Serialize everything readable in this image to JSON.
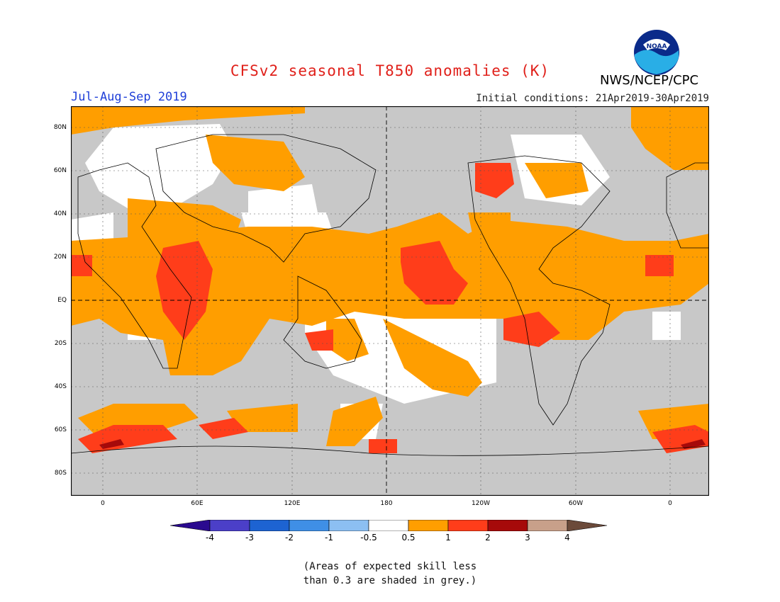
{
  "header": {
    "title": "CFSv2 seasonal T850 anomalies (K)",
    "season": "Jul-Aug-Sep 2019",
    "initial_conditions": "Initial conditions: 21Apr2019-30Apr2019",
    "agency": "NWS/NCEP/CPC",
    "logo_text": "NOAA"
  },
  "map": {
    "longitude_labels": [
      "0",
      "60E",
      "120E",
      "180",
      "120W",
      "60W",
      "0"
    ],
    "latitude_labels": [
      "80N",
      "60N",
      "40N",
      "20N",
      "EQ",
      "20S",
      "40S",
      "60S",
      "80S"
    ],
    "ocean_color": "#c8c8c8",
    "grid": "dotted",
    "reference_lines": [
      "EQ",
      "180"
    ]
  },
  "colorbar": {
    "labels": [
      "-4",
      "-3",
      "-2",
      "-1",
      "-0.5",
      "0.5",
      "1",
      "2",
      "3",
      "4"
    ],
    "colors": [
      "#2a0a8f",
      "#4b3fc8",
      "#1d63d2",
      "#3f8fe6",
      "#8cbff2",
      "#ffffff",
      "#ff9e00",
      "#ff3d1a",
      "#a60a0a",
      "#c8a08a",
      "#6b4a3a"
    ]
  },
  "note": {
    "line1": "(Areas of expected skill less",
    "line2": "than 0.3 are shaded in grey.)"
  }
}
